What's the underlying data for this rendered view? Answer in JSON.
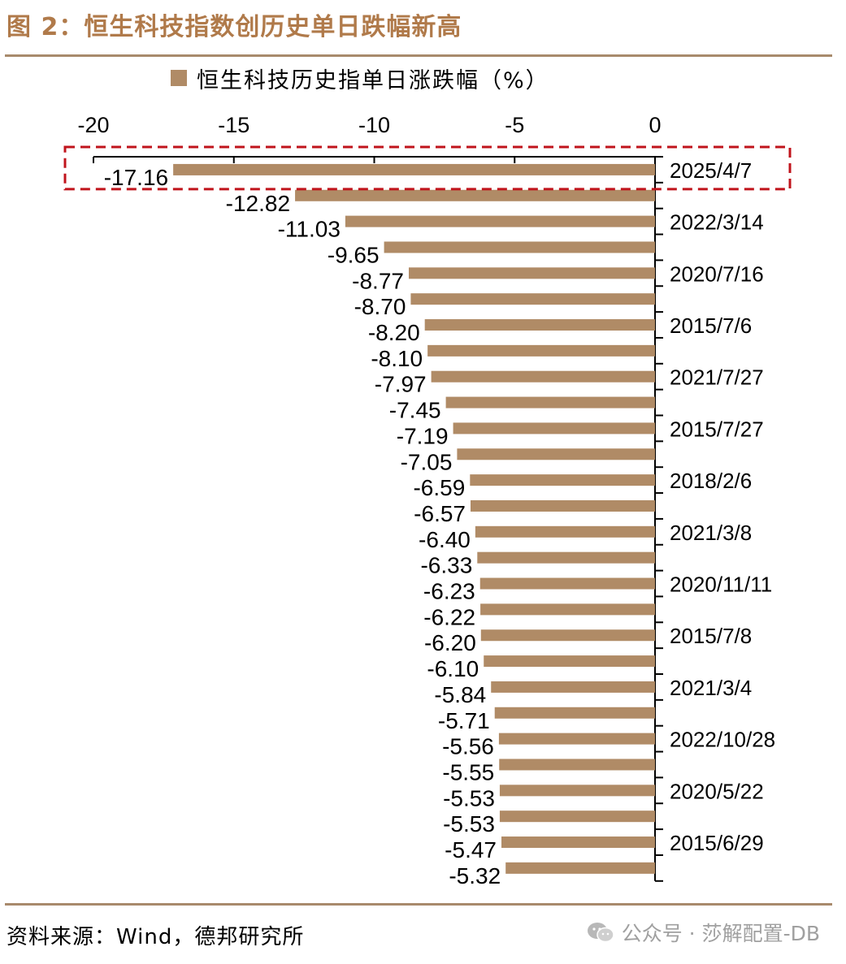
{
  "figure": {
    "title": "图 2：恒生科技指数创历史单日跌幅新高",
    "source": "资料来源：Wind，德邦研究所",
    "watermark": "公众号 · 莎解配置-DB"
  },
  "colors": {
    "bar": "#b08b66",
    "title": "#b07a4a",
    "rule": "#a88a6c",
    "highlight_box": "#c0141c"
  },
  "chart_data": {
    "type": "bar",
    "orientation": "horizontal",
    "title": "",
    "xlabel": "",
    "ylabel": "",
    "xlim": [
      -20,
      0
    ],
    "x_ticks": [
      -20,
      -15,
      -10,
      -5,
      0
    ],
    "x_tick_labels": [
      "-20",
      "-15",
      "-10",
      "-5",
      "0"
    ],
    "x_axis_position": "top",
    "y_axis_position": "right",
    "grid": false,
    "legend": "top",
    "series": [
      {
        "name": "恒生科技历史指单日涨跌幅（%）",
        "values": [
          -17.16,
          -12.82,
          -11.03,
          -9.65,
          -8.77,
          -8.7,
          -8.2,
          -8.1,
          -7.97,
          -7.45,
          -7.19,
          -7.05,
          -6.59,
          -6.57,
          -6.4,
          -6.33,
          -6.23,
          -6.22,
          -6.2,
          -6.1,
          -5.84,
          -5.71,
          -5.56,
          -5.55,
          -5.53,
          -5.53,
          -5.47,
          -5.32
        ],
        "data_labels": [
          "-17.16",
          "-12.82",
          "-11.03",
          "-9.65",
          "-8.77",
          "-8.70",
          "-8.20",
          "-8.10",
          "-7.97",
          "-7.45",
          "-7.19",
          "-7.05",
          "-6.59",
          "-6.57",
          "-6.40",
          "-6.33",
          "-6.23",
          "-6.22",
          "-6.20",
          "-6.10",
          "-5.84",
          "-5.71",
          "-5.56",
          "-5.55",
          "-5.53",
          "-5.53",
          "-5.47",
          "-5.32"
        ]
      }
    ],
    "category_labels": [
      "2025/4/7",
      "",
      "2022/3/14",
      "",
      "2020/7/16",
      "",
      "2015/7/6",
      "",
      "2021/7/27",
      "",
      "2015/7/27",
      "",
      "2018/2/6",
      "",
      "2021/3/8",
      "",
      "2020/11/11",
      "",
      "2015/7/8",
      "",
      "2021/3/4",
      "",
      "2022/10/28",
      "",
      "2020/5/22",
      "",
      "2015/6/29",
      ""
    ],
    "highlighted_category": "2025/4/7"
  }
}
